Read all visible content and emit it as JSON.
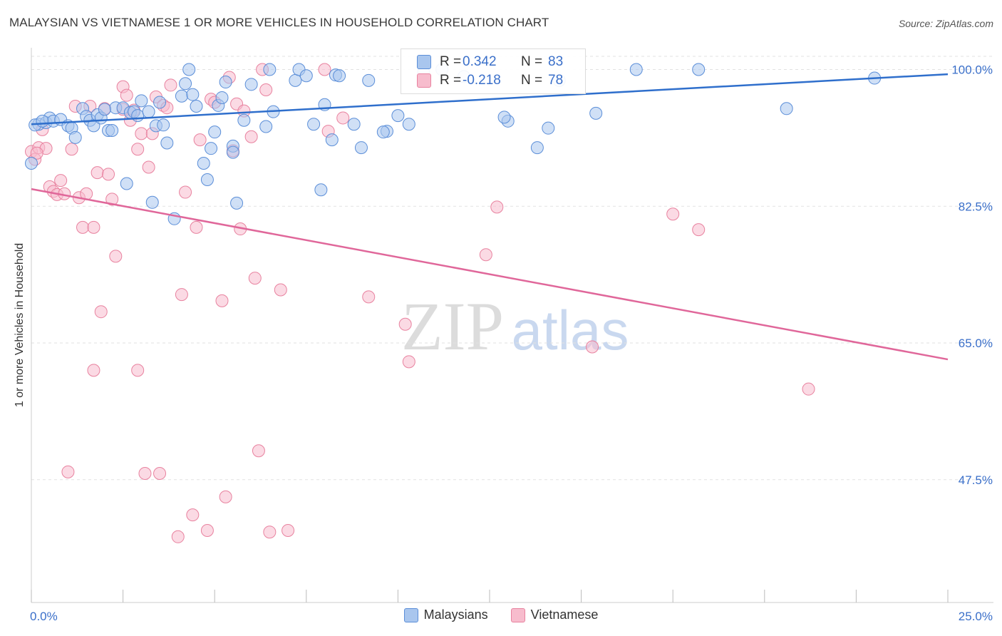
{
  "title": "MALAYSIAN VS VIETNAMESE 1 OR MORE VEHICLES IN HOUSEHOLD CORRELATION CHART",
  "source": "Source: ZipAtlas.com",
  "watermark": {
    "zip": "ZIP",
    "atlas": "atlas"
  },
  "stats": {
    "malaysians": {
      "r_label": "R =",
      "r_value": "0.342",
      "n_label": "N =",
      "n_value": "83"
    },
    "vietnamese": {
      "r_label": "R =",
      "r_value": "-0.218",
      "n_label": "N =",
      "n_value": "78"
    }
  },
  "legend": {
    "malaysians": "Malaysians",
    "vietnamese": "Vietnamese"
  },
  "chart_data": {
    "type": "scatter",
    "title": "MALAYSIAN VS VIETNAMESE 1 OR MORE VEHICLES IN HOUSEHOLD CORRELATION CHART",
    "xlabel": "",
    "ylabel": "1 or more Vehicles in Household",
    "xlim": [
      0,
      25
    ],
    "ylim": [
      30,
      101.5
    ],
    "x_tick_labels": [
      "0.0%",
      "25.0%"
    ],
    "y_ticks": [
      47.5,
      65.0,
      82.5,
      100.0
    ],
    "y_tick_labels": [
      "47.5%",
      "65.0%",
      "82.5%",
      "100.0%"
    ],
    "grid": true,
    "legend_position": "bottom",
    "colors": {
      "malaysians_fill": "#a9c6ee",
      "malaysians_stroke": "#5b8ed8",
      "malaysians_line": "#2f6fcc",
      "vietnamese_fill": "#f7bccd",
      "vietnamese_stroke": "#e8829f",
      "vietnamese_line": "#e0679a",
      "axis_text": "#3a6fc9",
      "grid": "#e2e2e2"
    },
    "series": [
      {
        "name": "Malaysians",
        "trend": {
          "x": [
            0,
            25
          ],
          "y": [
            93.0,
            99.4
          ]
        },
        "points": [
          [
            0.0,
            88.0
          ],
          [
            0.2,
            93.0
          ],
          [
            0.4,
            93.2
          ],
          [
            0.5,
            93.8
          ],
          [
            0.6,
            93.4
          ],
          [
            0.8,
            93.6
          ],
          [
            1.0,
            92.8
          ],
          [
            1.1,
            92.5
          ],
          [
            1.2,
            91.3
          ],
          [
            1.4,
            95.0
          ],
          [
            1.5,
            94.0
          ],
          [
            1.6,
            93.5
          ],
          [
            1.7,
            92.8
          ],
          [
            1.8,
            94.2
          ],
          [
            1.9,
            93.8
          ],
          [
            2.1,
            92.2
          ],
          [
            2.2,
            92.2
          ],
          [
            2.3,
            95.1
          ],
          [
            2.5,
            95.1
          ],
          [
            2.6,
            85.4
          ],
          [
            2.7,
            94.5
          ],
          [
            2.8,
            94.6
          ],
          [
            2.9,
            94.1
          ],
          [
            3.0,
            96.0
          ],
          [
            3.2,
            94.6
          ],
          [
            3.3,
            83.0
          ],
          [
            3.4,
            92.8
          ],
          [
            3.5,
            95.8
          ],
          [
            3.6,
            92.9
          ],
          [
            3.7,
            90.6
          ],
          [
            3.9,
            80.9
          ],
          [
            4.1,
            96.6
          ],
          [
            4.2,
            98.2
          ],
          [
            4.3,
            100.0
          ],
          [
            4.4,
            96.8
          ],
          [
            4.5,
            95.3
          ],
          [
            4.7,
            88.0
          ],
          [
            4.8,
            85.9
          ],
          [
            4.9,
            89.9
          ],
          [
            5.0,
            92.0
          ],
          [
            5.1,
            95.4
          ],
          [
            5.2,
            96.4
          ],
          [
            5.3,
            98.4
          ],
          [
            5.5,
            90.2
          ],
          [
            5.5,
            89.4
          ],
          [
            5.6,
            82.9
          ],
          [
            5.8,
            93.5
          ],
          [
            6.0,
            98.1
          ],
          [
            6.4,
            92.7
          ],
          [
            6.5,
            100.0
          ],
          [
            7.2,
            98.6
          ],
          [
            7.3,
            100.0
          ],
          [
            7.5,
            99.2
          ],
          [
            7.7,
            93.0
          ],
          [
            7.9,
            84.6
          ],
          [
            8.0,
            95.5
          ],
          [
            8.2,
            91.0
          ],
          [
            8.3,
            99.3
          ],
          [
            8.4,
            99.2
          ],
          [
            8.8,
            93.0
          ],
          [
            9.0,
            90.0
          ],
          [
            9.2,
            98.6
          ],
          [
            9.7,
            92.1
          ],
          [
            10.0,
            94.1
          ],
          [
            10.3,
            93.0
          ],
          [
            10.7,
            99.6
          ],
          [
            11.2,
            100.0
          ],
          [
            11.8,
            99.1
          ],
          [
            13.0,
            93.4
          ],
          [
            13.8,
            90.0
          ],
          [
            14.1,
            92.5
          ],
          [
            14.4,
            98.6
          ],
          [
            15.4,
            94.4
          ],
          [
            16.5,
            100.0
          ],
          [
            18.2,
            100.0
          ],
          [
            20.6,
            95.0
          ],
          [
            23.0,
            98.9
          ],
          [
            0.1,
            92.9
          ],
          [
            0.3,
            93.4
          ],
          [
            2.0,
            94.9
          ],
          [
            6.6,
            94.6
          ],
          [
            9.6,
            92.0
          ],
          [
            12.9,
            93.9
          ]
        ]
      },
      {
        "name": "Vietnamese",
        "trend": {
          "x": [
            0,
            25
          ],
          "y": [
            84.7,
            62.9
          ]
        },
        "points": [
          [
            0.0,
            89.5
          ],
          [
            0.1,
            88.5
          ],
          [
            0.2,
            90.0
          ],
          [
            0.3,
            92.3
          ],
          [
            0.4,
            89.9
          ],
          [
            0.5,
            85.0
          ],
          [
            0.6,
            84.4
          ],
          [
            0.7,
            84.0
          ],
          [
            0.8,
            85.8
          ],
          [
            0.9,
            84.1
          ],
          [
            1.0,
            48.5
          ],
          [
            1.1,
            89.8
          ],
          [
            1.2,
            95.3
          ],
          [
            1.3,
            83.6
          ],
          [
            1.4,
            79.8
          ],
          [
            1.5,
            84.1
          ],
          [
            1.6,
            95.3
          ],
          [
            1.7,
            79.8
          ],
          [
            1.7,
            61.5
          ],
          [
            1.8,
            86.8
          ],
          [
            1.9,
            69.0
          ],
          [
            2.0,
            95.0
          ],
          [
            2.1,
            86.6
          ],
          [
            2.2,
            83.4
          ],
          [
            2.3,
            76.1
          ],
          [
            2.5,
            94.9
          ],
          [
            2.5,
            97.8
          ],
          [
            2.6,
            96.7
          ],
          [
            2.7,
            93.5
          ],
          [
            2.8,
            94.8
          ],
          [
            2.9,
            61.5
          ],
          [
            2.9,
            89.8
          ],
          [
            3.0,
            91.8
          ],
          [
            3.1,
            48.3
          ],
          [
            3.2,
            87.5
          ],
          [
            3.3,
            91.8
          ],
          [
            3.4,
            96.5
          ],
          [
            3.5,
            48.3
          ],
          [
            3.6,
            95.4
          ],
          [
            3.7,
            95.1
          ],
          [
            3.8,
            98.0
          ],
          [
            4.0,
            40.2
          ],
          [
            4.1,
            71.2
          ],
          [
            4.2,
            84.3
          ],
          [
            4.4,
            43.0
          ],
          [
            4.5,
            79.8
          ],
          [
            4.6,
            91.0
          ],
          [
            4.8,
            41.0
          ],
          [
            4.9,
            96.2
          ],
          [
            5.0,
            95.8
          ],
          [
            5.2,
            70.4
          ],
          [
            5.3,
            45.3
          ],
          [
            5.4,
            99.0
          ],
          [
            5.5,
            89.6
          ],
          [
            5.6,
            95.6
          ],
          [
            5.7,
            79.6
          ],
          [
            5.8,
            94.7
          ],
          [
            6.0,
            91.4
          ],
          [
            6.1,
            73.3
          ],
          [
            6.2,
            51.2
          ],
          [
            6.3,
            100.0
          ],
          [
            6.4,
            97.4
          ],
          [
            6.5,
            40.8
          ],
          [
            6.8,
            71.8
          ],
          [
            7.0,
            41.0
          ],
          [
            8.0,
            100.0
          ],
          [
            8.1,
            92.1
          ],
          [
            8.5,
            93.8
          ],
          [
            9.2,
            70.9
          ],
          [
            10.2,
            67.4
          ],
          [
            10.3,
            62.6
          ],
          [
            12.4,
            76.3
          ],
          [
            12.7,
            82.4
          ],
          [
            15.3,
            64.5
          ],
          [
            17.5,
            81.5
          ],
          [
            18.2,
            79.5
          ],
          [
            21.2,
            59.1
          ],
          [
            0.15,
            89.3
          ]
        ]
      }
    ]
  }
}
